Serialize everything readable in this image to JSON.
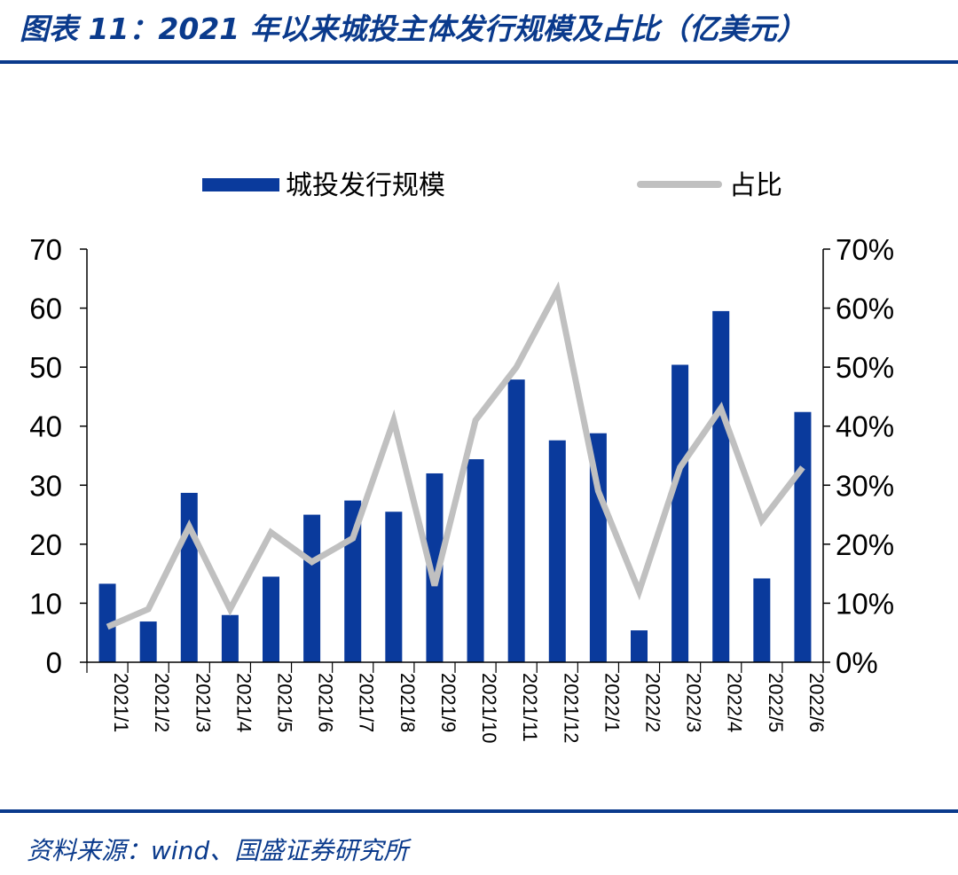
{
  "title": "图表 11：2021 年以来城投主体发行规模及占比（亿美元）",
  "source": "资料来源：wind、国盛证券研究所",
  "colors": {
    "bar": "#0a3a9c",
    "line": "#c0c0c0",
    "accent": "#0a3a8c"
  },
  "chart_data": {
    "type": "bar",
    "categories": [
      "2021/1",
      "2021/2",
      "2021/3",
      "2021/4",
      "2021/5",
      "2021/6",
      "2021/7",
      "2021/8",
      "2021/9",
      "2021/10",
      "2021/11",
      "2021/12",
      "2022/1",
      "2022/2",
      "2022/3",
      "2022/4",
      "2022/5",
      "2022/6"
    ],
    "series": [
      {
        "name": "城投发行规模",
        "type": "bar",
        "axis": "left",
        "values": [
          13.3,
          6.9,
          28.7,
          8.0,
          14.5,
          25.0,
          27.4,
          25.5,
          32.0,
          34.4,
          47.9,
          37.6,
          38.8,
          5.4,
          50.4,
          59.5,
          14.2,
          42.4
        ]
      },
      {
        "name": "占比",
        "type": "line",
        "axis": "right",
        "values": [
          0.06,
          0.09,
          0.23,
          0.09,
          0.22,
          0.17,
          0.21,
          0.41,
          0.13,
          0.41,
          0.5,
          0.63,
          0.29,
          0.12,
          0.33,
          0.43,
          0.24,
          0.33
        ]
      }
    ],
    "ylim": [
      0,
      70
    ],
    "y_ticks": [
      "0",
      "10",
      "20",
      "30",
      "40",
      "50",
      "60",
      "70"
    ],
    "y2lim": [
      0,
      0.7
    ],
    "y2_ticks": [
      "0%",
      "10%",
      "20%",
      "30%",
      "40%",
      "50%",
      "60%",
      "70%"
    ],
    "legend_position": "top-center",
    "grid": false
  }
}
